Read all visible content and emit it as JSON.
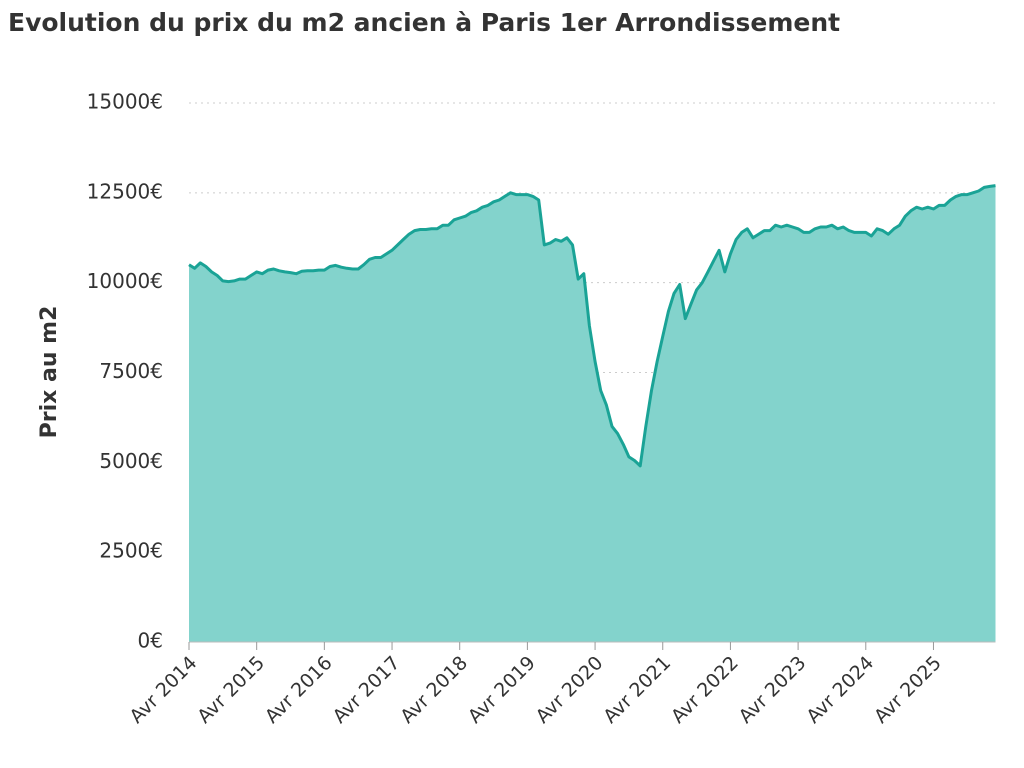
{
  "chart_data": {
    "type": "area",
    "title": "Evolution du prix du m2 ancien à Paris 1er Arrondissement",
    "ylabel": "Prix au m2",
    "color": "#83d3cc",
    "line_color": "#1aa396",
    "x": [
      "2014-04",
      "2014-05",
      "2014-06",
      "2014-07",
      "2014-08",
      "2014-09",
      "2014-10",
      "2014-11",
      "2014-12",
      "2015-01",
      "2015-02",
      "2015-03",
      "2015-04",
      "2015-05",
      "2015-06",
      "2015-07",
      "2015-08",
      "2015-09",
      "2015-10",
      "2015-11",
      "2015-12",
      "2016-01",
      "2016-02",
      "2016-03",
      "2016-04",
      "2016-05",
      "2016-06",
      "2016-07",
      "2016-08",
      "2016-09",
      "2016-10",
      "2016-11",
      "2016-12",
      "2017-01",
      "2017-02",
      "2017-03",
      "2017-04",
      "2017-05",
      "2017-06",
      "2017-07",
      "2017-08",
      "2017-09",
      "2017-10",
      "2017-11",
      "2017-12",
      "2018-01",
      "2018-02",
      "2018-03",
      "2018-04",
      "2018-05",
      "2018-06",
      "2018-07",
      "2018-08",
      "2018-09",
      "2018-10",
      "2018-11",
      "2018-12",
      "2019-01",
      "2019-02",
      "2019-03",
      "2019-04",
      "2019-05",
      "2019-06",
      "2019-07",
      "2019-08",
      "2019-09",
      "2019-10",
      "2019-11",
      "2019-12",
      "2020-01",
      "2020-02",
      "2020-03",
      "2020-04",
      "2020-05",
      "2020-06",
      "2020-07",
      "2020-08",
      "2020-09",
      "2020-10",
      "2020-11",
      "2020-12",
      "2021-01",
      "2021-02",
      "2021-03",
      "2021-04",
      "2021-05",
      "2021-06",
      "2021-07",
      "2021-08",
      "2021-09",
      "2021-10",
      "2021-11",
      "2021-12",
      "2022-01",
      "2022-02",
      "2022-03",
      "2022-04",
      "2022-05",
      "2022-06",
      "2022-07",
      "2022-08",
      "2022-09",
      "2022-10",
      "2022-11",
      "2022-12",
      "2023-01",
      "2023-02",
      "2023-03",
      "2023-04",
      "2023-05",
      "2023-06",
      "2023-07",
      "2023-08",
      "2023-09",
      "2023-10",
      "2023-11",
      "2023-12",
      "2024-01",
      "2024-02",
      "2024-03",
      "2024-04",
      "2024-05",
      "2024-06",
      "2024-07",
      "2024-08",
      "2024-09",
      "2024-10",
      "2024-11",
      "2024-12",
      "2025-01",
      "2025-02",
      "2025-03",
      "2025-04",
      "2025-05",
      "2025-06",
      "2025-07",
      "2025-08",
      "2025-09",
      "2025-10",
      "2025-11",
      "2025-12",
      "2026-01",
      "2026-02",
      "2026-03"
    ],
    "values": [
      10500,
      10400,
      10550,
      10450,
      10300,
      10200,
      10050,
      10030,
      10050,
      10100,
      10100,
      10200,
      10300,
      10250,
      10350,
      10380,
      10330,
      10300,
      10280,
      10250,
      10320,
      10330,
      10330,
      10350,
      10350,
      10450,
      10480,
      10430,
      10400,
      10380,
      10380,
      10500,
      10650,
      10700,
      10700,
      10800,
      10900,
      11050,
      11200,
      11350,
      11450,
      11480,
      11480,
      11500,
      11500,
      11600,
      11600,
      11750,
      11800,
      11850,
      11950,
      12000,
      12100,
      12150,
      12250,
      12300,
      12400,
      12500,
      12450,
      12450,
      12450,
      12400,
      12300,
      11050,
      11100,
      11200,
      11150,
      11250,
      11050,
      10100,
      10250,
      8800,
      7800,
      7000,
      6600,
      6000,
      5800,
      5500,
      5150,
      5050,
      4900,
      6000,
      7000,
      7800,
      8500,
      9200,
      9700,
      9950,
      9000,
      9400,
      9800,
      10000,
      10300,
      10600,
      10900,
      10300,
      10800,
      11200,
      11400,
      11500,
      11250,
      11350,
      11450,
      11450,
      11600,
      11550,
      11600,
      11550,
      11500,
      11400,
      11400,
      11500,
      11550,
      11550,
      11600,
      11500,
      11550,
      11450,
      11400,
      11400,
      11400,
      11300,
      11500,
      11450,
      11350,
      11500,
      11600,
      11850,
      12000,
      12100,
      12050,
      12100,
      12050,
      12150,
      12150,
      12300,
      12400,
      12450,
      12450,
      12500,
      12550,
      12650,
      12680,
      12700
    ],
    "xlim": [
      "2014-04",
      "2026-03"
    ],
    "xticks": [
      {
        "value": "2014-04",
        "label": "Avr 2014"
      },
      {
        "value": "2015-04",
        "label": "Avr 2015"
      },
      {
        "value": "2016-04",
        "label": "Avr 2016"
      },
      {
        "value": "2017-04",
        "label": "Avr 2017"
      },
      {
        "value": "2018-04",
        "label": "Avr 2018"
      },
      {
        "value": "2019-04",
        "label": "Avr 2019"
      },
      {
        "value": "2020-04",
        "label": "Avr 2020"
      },
      {
        "value": "2021-04",
        "label": "Avr 2021"
      },
      {
        "value": "2022-04",
        "label": "Avr 2022"
      },
      {
        "value": "2023-04",
        "label": "Avr 2023"
      },
      {
        "value": "2024-04",
        "label": "Avr 2024"
      },
      {
        "value": "2025-04",
        "label": "Avr 2025"
      }
    ],
    "ylim": [
      0,
      15000
    ],
    "yticks": [
      {
        "value": 0,
        "label": "0€"
      },
      {
        "value": 2500,
        "label": "2500€"
      },
      {
        "value": 5000,
        "label": "5000€"
      },
      {
        "value": 7500,
        "label": "7500€"
      },
      {
        "value": 10000,
        "label": "10000€"
      },
      {
        "value": 12500,
        "label": "12500€"
      },
      {
        "value": 15000,
        "label": "15000€"
      }
    ],
    "grid": true
  }
}
